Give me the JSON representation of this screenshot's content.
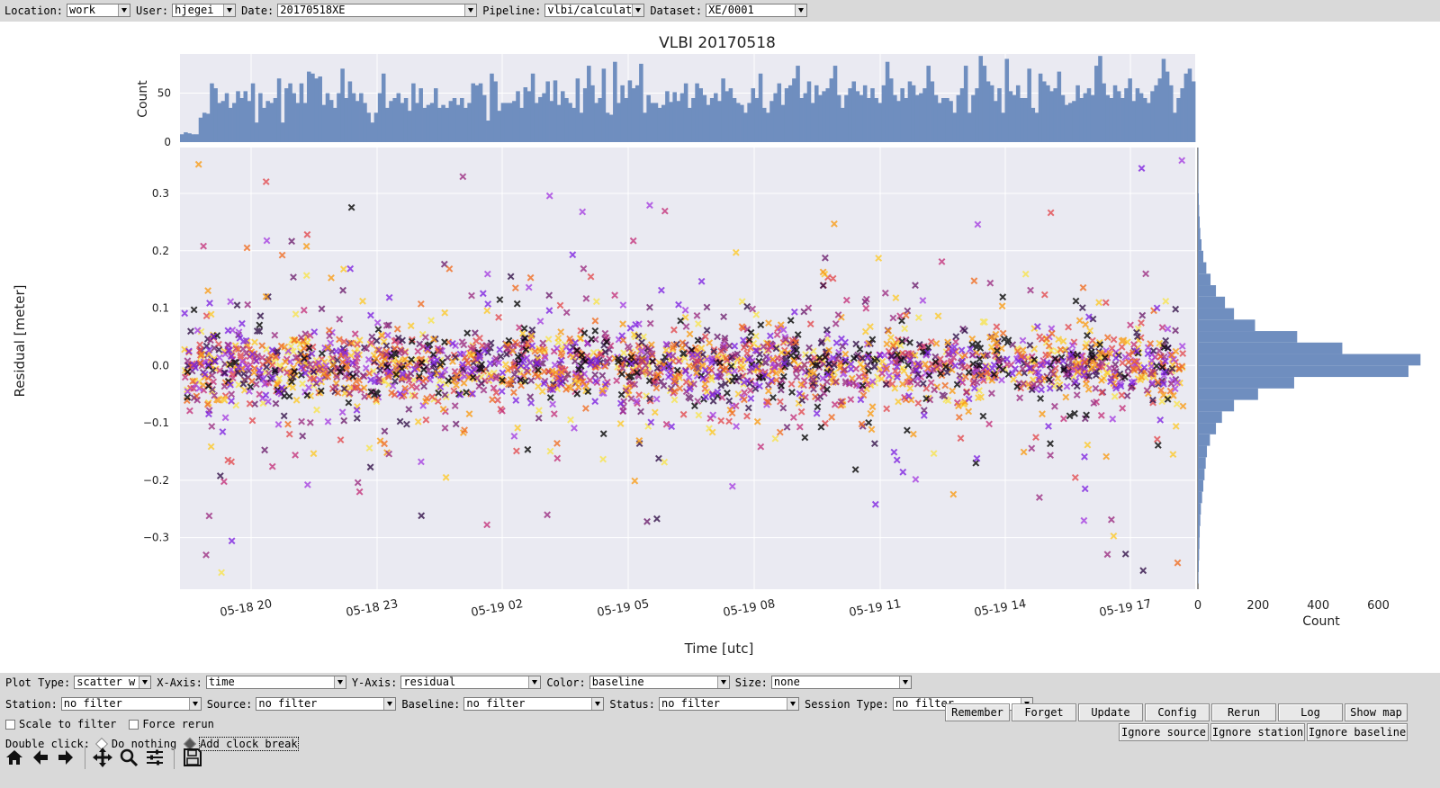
{
  "toolbar": {
    "location_label": "Location:",
    "location_value": "work",
    "user_label": "User:",
    "user_value": "hjegei",
    "date_label": "Date:",
    "date_value": "20170518XE",
    "pipeline_label": "Pipeline:",
    "pipeline_value": "vlbi/calculate",
    "dataset_label": "Dataset:",
    "dataset_value": "XE/0001"
  },
  "chart_data": {
    "type": "scatter",
    "title": "VLBI 20170518",
    "xlabel": "Time [utc]",
    "ylabel": "Residual [meter]",
    "x_ticks": [
      "05-18 20",
      "05-18 23",
      "05-19 02",
      "05-19 05",
      "05-19 08",
      "05-19 11",
      "05-19 14",
      "05-19 17"
    ],
    "xlim": [
      "05-18 18:15",
      "05-19 18:45"
    ],
    "y_ticks": [
      "0.3",
      "0.2",
      "0.1",
      "0.0",
      "−0.1",
      "−0.2",
      "−0.3"
    ],
    "ylim": [
      -0.39,
      0.38
    ],
    "marker": "x",
    "color_by": "baseline",
    "colormap": [
      "#000000",
      "#2e0b45",
      "#6a1b6b",
      "#9a2a80",
      "#c3307a",
      "#e2474c",
      "#f06a1f",
      "#f89a12",
      "#fcc826",
      "#f7e34a",
      "#7c20e0",
      "#a43ce0"
    ],
    "grid": true,
    "background": "#eaeaf2",
    "hist_color": "#6f8ebf",
    "top_hist": {
      "ylabel": "Count",
      "yticks": [
        "0",
        "50"
      ],
      "ylim": [
        0,
        90
      ],
      "counts": [
        8,
        10,
        9,
        8,
        8,
        25,
        30,
        29,
        60,
        55,
        40,
        42,
        50,
        35,
        40,
        52,
        45,
        52,
        42,
        60,
        20,
        50,
        35,
        42,
        40,
        45,
        65,
        20,
        55,
        60,
        50,
        40,
        60,
        40,
        72,
        70,
        65,
        67,
        38,
        50,
        43,
        35,
        50,
        75,
        45,
        62,
        50,
        42,
        50,
        40,
        30,
        20,
        30,
        50,
        70,
        35,
        42,
        45,
        50,
        40,
        45,
        32,
        60,
        40,
        55,
        35,
        38,
        40,
        55,
        35,
        38,
        35,
        42,
        45,
        38,
        45,
        35,
        40,
        60,
        58,
        60,
        48,
        22,
        70,
        62,
        32,
        40,
        40,
        40,
        42,
        52,
        35,
        56,
        52,
        70,
        40,
        46,
        50,
        62,
        42,
        63,
        38,
        52,
        45,
        40,
        35,
        65,
        30,
        55,
        78,
        58,
        40,
        45,
        75,
        30,
        28,
        82,
        40,
        58,
        45,
        63,
        55,
        58,
        80,
        30,
        48,
        40,
        40,
        35,
        38,
        52,
        41,
        51,
        42,
        50,
        60,
        35,
        45,
        60,
        55,
        48,
        38,
        45,
        50,
        42,
        65,
        52,
        55,
        45,
        40,
        38,
        30,
        40,
        55,
        45,
        70,
        35,
        30,
        42,
        50,
        60,
        38,
        55,
        58,
        65,
        78,
        45,
        50,
        62,
        40,
        58,
        48,
        52,
        55,
        65,
        78,
        48,
        35,
        48,
        55,
        62,
        52,
        48,
        58,
        45,
        55,
        45,
        40,
        58,
        82,
        65,
        48,
        42,
        55,
        45,
        62,
        58,
        48,
        50,
        55,
        78,
        62,
        48,
        40,
        45,
        45,
        42,
        30,
        48,
        55,
        78,
        30,
        48,
        55,
        88,
        78,
        62,
        58,
        42,
        55,
        30,
        85,
        52,
        48,
        58,
        45,
        45,
        75,
        35,
        30,
        70,
        62,
        58,
        52,
        55,
        72,
        48,
        38,
        40,
        42,
        58,
        45,
        50,
        55,
        48,
        78,
        88,
        60,
        48,
        45,
        58,
        52,
        45,
        55,
        65,
        42,
        55,
        50,
        45,
        40,
        52,
        58,
        65,
        85,
        72,
        58,
        30,
        45,
        55,
        70,
        75,
        62
      ]
    },
    "right_hist": {
      "xlabel": "Count",
      "xticks": [
        "0",
        "200",
        "400",
        "600"
      ],
      "xlim": [
        0,
        730
      ],
      "bins_center": [
        -0.37,
        -0.35,
        -0.33,
        -0.31,
        -0.29,
        -0.27,
        -0.25,
        -0.23,
        -0.21,
        -0.19,
        -0.17,
        -0.15,
        -0.13,
        -0.11,
        -0.09,
        -0.07,
        -0.05,
        -0.03,
        -0.01,
        0.01,
        0.03,
        0.05,
        0.07,
        0.09,
        0.11,
        0.13,
        0.15,
        0.17,
        0.19,
        0.21,
        0.23,
        0.25,
        0.27,
        0.29,
        0.31,
        0.33,
        0.35,
        0.37
      ],
      "counts": [
        2,
        3,
        4,
        5,
        6,
        8,
        10,
        14,
        18,
        22,
        26,
        30,
        40,
        60,
        80,
        120,
        200,
        320,
        700,
        740,
        480,
        330,
        190,
        120,
        90,
        60,
        42,
        28,
        18,
        12,
        8,
        6,
        4,
        3,
        2,
        1,
        1,
        1
      ]
    }
  },
  "controls": {
    "plot_type_label": "Plot Type:",
    "plot_type_value": "scatter w",
    "xaxis_label": "X-Axis:",
    "xaxis_value": "time",
    "yaxis_label": "Y-Axis:",
    "yaxis_value": "residual",
    "color_label": "Color:",
    "color_value": "baseline",
    "size_label": "Size:",
    "size_value": "none",
    "station_label": "Station:",
    "station_value": "no filter",
    "source_label": "Source:",
    "source_value": "no filter",
    "baseline_label": "Baseline:",
    "baseline_value": "no filter",
    "status_label": "Status:",
    "status_value": "no filter",
    "session_type_label": "Session Type:",
    "session_type_value": "no filter",
    "scale_to_filter": "Scale to filter",
    "force_rerun": "Force rerun",
    "double_click_label": "Double click:",
    "do_nothing": "Do nothing",
    "add_clock_break": "Add clock break",
    "remember": "Remember",
    "forget": "Forget",
    "update": "Update",
    "config": "Config",
    "rerun": "Rerun",
    "log": "Log",
    "show_map": "Show map",
    "ignore_source": "Ignore source",
    "ignore_station": "Ignore station",
    "ignore_baseline": "Ignore baseline"
  },
  "nav_toolbar": [
    "home-icon",
    "back-arrow-icon",
    "forward-arrow-icon",
    "pan-icon",
    "zoom-icon",
    "configure-subplots-icon",
    "save-icon"
  ]
}
